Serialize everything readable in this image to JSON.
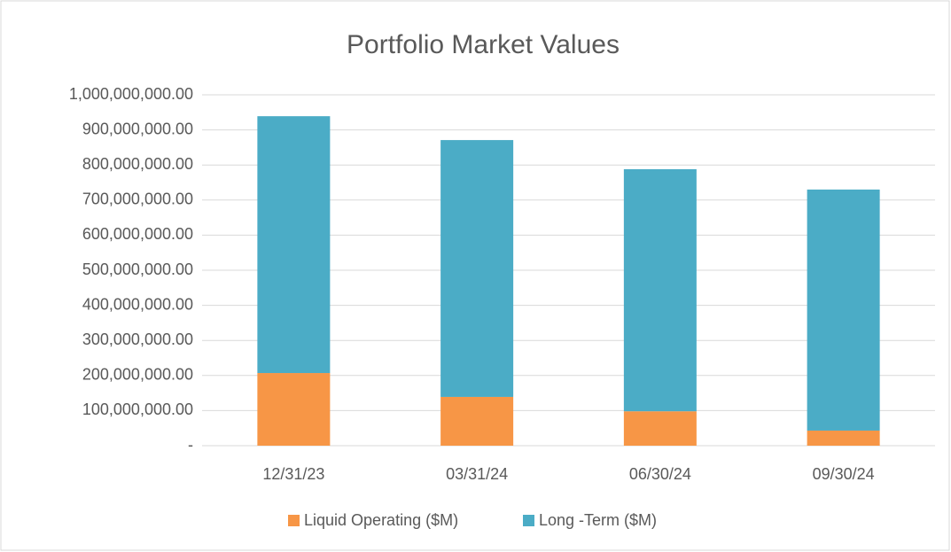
{
  "chart_data": {
    "type": "stacked_bar",
    "title": "Portfolio Market Values",
    "categories": [
      "12/31/23",
      "03/31/24",
      "06/30/24",
      "09/30/24"
    ],
    "series": [
      {
        "name": "Liquid Operating ($M)",
        "color": "#f79646",
        "values": [
          207000000,
          139000000,
          98000000,
          43000000
        ]
      },
      {
        "name": "Long -Term ($M)",
        "color": "#4bacc6",
        "values": [
          732000000,
          732000000,
          690000000,
          687000000
        ]
      }
    ],
    "ylim": [
      0,
      1000000000
    ],
    "yticks": [
      {
        "value": 0,
        "label": "-"
      },
      {
        "value": 100000000,
        "label": "100,000,000.00"
      },
      {
        "value": 200000000,
        "label": "200,000,000.00"
      },
      {
        "value": 300000000,
        "label": "300,000,000.00"
      },
      {
        "value": 400000000,
        "label": "400,000,000.00"
      },
      {
        "value": 500000000,
        "label": "500,000,000.00"
      },
      {
        "value": 600000000,
        "label": "600,000,000.00"
      },
      {
        "value": 700000000,
        "label": "700,000,000.00"
      },
      {
        "value": 800000000,
        "label": "800,000,000.00"
      },
      {
        "value": 900000000,
        "label": "900,000,000.00"
      },
      {
        "value": 1000000000,
        "label": "1,000,000,000.00"
      }
    ],
    "grid": true,
    "legend": "bottom"
  }
}
